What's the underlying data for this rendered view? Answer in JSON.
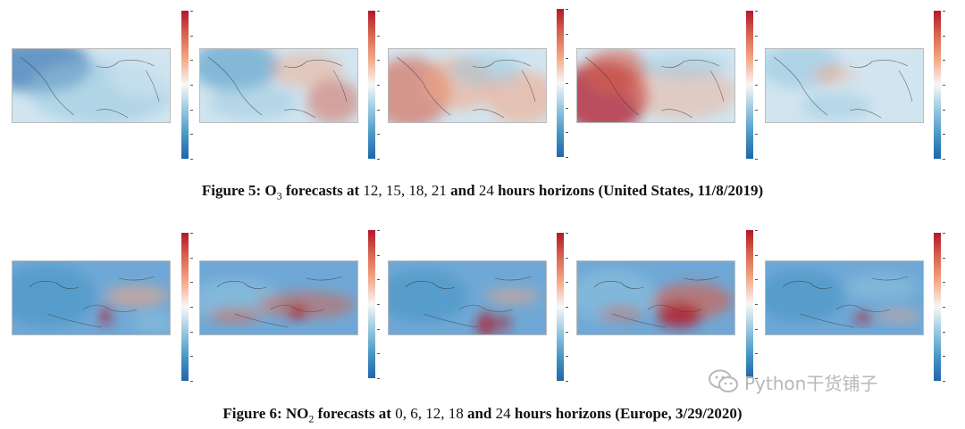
{
  "figure5": {
    "caption": {
      "label": "Figure 5:",
      "species": "O",
      "subscript": "3",
      "text1": "forecasts at",
      "h1": "12,",
      "h2": "15,",
      "h3": "18,",
      "h4": "21",
      "and": "and",
      "h5": "24",
      "text2": "hours horizons (United States, 11/8/2019)"
    },
    "panels": [
      "12",
      "15",
      "18",
      "21",
      "24"
    ]
  },
  "figure6": {
    "caption": {
      "label": "Figure 6:",
      "species": "NO",
      "subscript": "2",
      "text1": "forecasts at",
      "h1": "0,",
      "h2": "6,",
      "h3": "12,",
      "h4": "18",
      "and": "and",
      "h5": "24",
      "text2": "hours horizons (Europe, 3/29/2020)"
    },
    "panels": [
      "0",
      "6",
      "12",
      "18",
      "24"
    ]
  },
  "colormap": {
    "high": "#b2182b",
    "mid": "#f7f7f7",
    "low": "#2166ac"
  },
  "watermark": {
    "text": "Python干货铺子",
    "icon": "wechat-icon"
  }
}
